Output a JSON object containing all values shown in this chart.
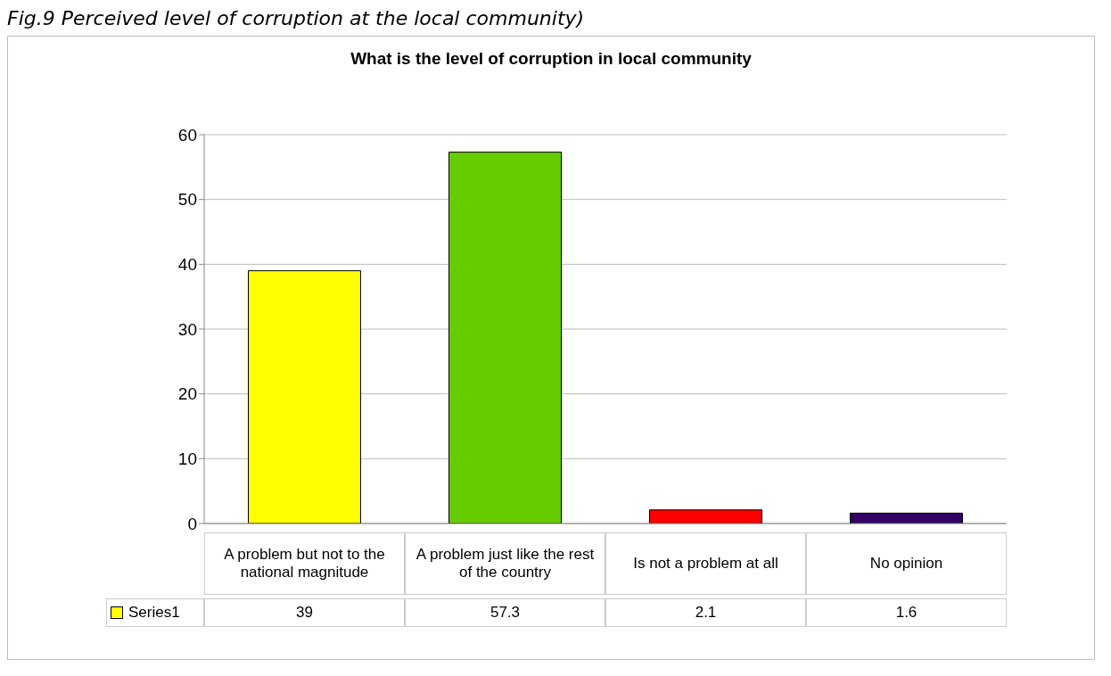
{
  "chart_data": {
    "type": "bar",
    "title": "What is the level of corruption in local community",
    "annotations": [
      "Fig.9 Perceived level of corruption at the local community)"
    ],
    "categories": [
      "A problem but not to the national magnitude",
      "A problem just like the rest of the country",
      "Is not a problem at all",
      "No opinion"
    ],
    "series": [
      {
        "name": "Series1",
        "color": "#ffff00",
        "colors": [
          "#ffff00",
          "#66cc00",
          "#ff0000",
          "#330066"
        ],
        "values": [
          39,
          57.3,
          2.1,
          1.6
        ]
      }
    ],
    "ylim": [
      0,
      60
    ],
    "yticks": [
      0,
      10,
      20,
      30,
      40,
      50,
      60
    ],
    "grid": "y",
    "data_labels": true,
    "legend": "bottom left"
  }
}
